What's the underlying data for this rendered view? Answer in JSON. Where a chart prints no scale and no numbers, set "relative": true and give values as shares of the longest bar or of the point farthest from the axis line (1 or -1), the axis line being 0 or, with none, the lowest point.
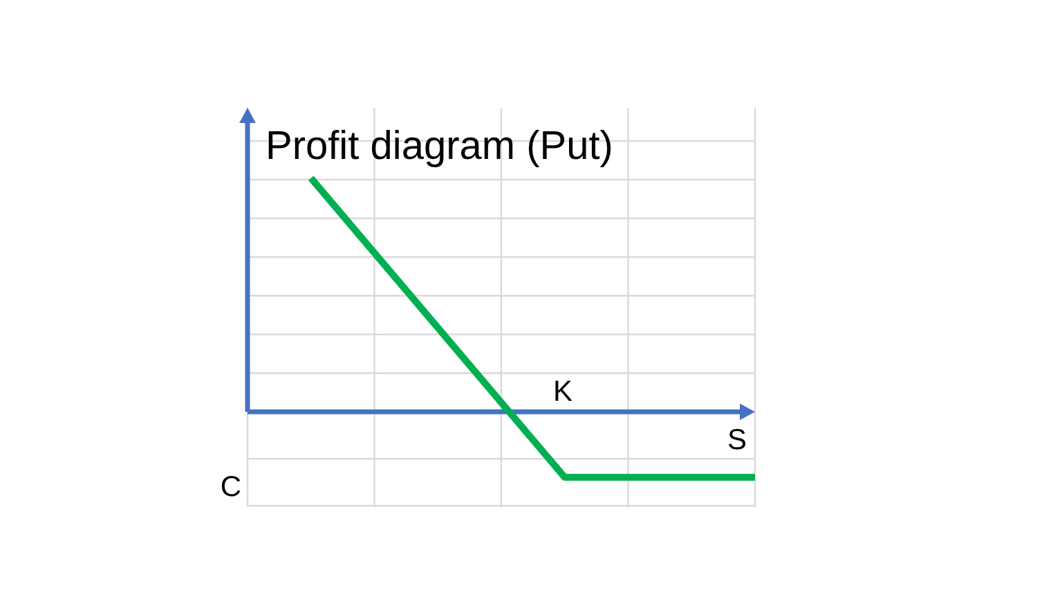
{
  "chart_data": {
    "type": "line",
    "title": "Profit diagram (Put)",
    "xlabel": "S",
    "annotations": [
      "K",
      "C"
    ],
    "categories": [
      null,
      null,
      null,
      null,
      null,
      null,
      null,
      null,
      null
    ],
    "series": [
      {
        "color": "#00b050",
        "values": [
          null,
          1,
          0.68,
          0.36,
          0.04,
          -0.28,
          -0.28,
          -0.28,
          -0.28
        ]
      }
    ],
    "ref_lines": [
      {
        "axis": "y",
        "value": 0,
        "color": "#4472c4"
      }
    ],
    "relative": true,
    "grid": true
  }
}
